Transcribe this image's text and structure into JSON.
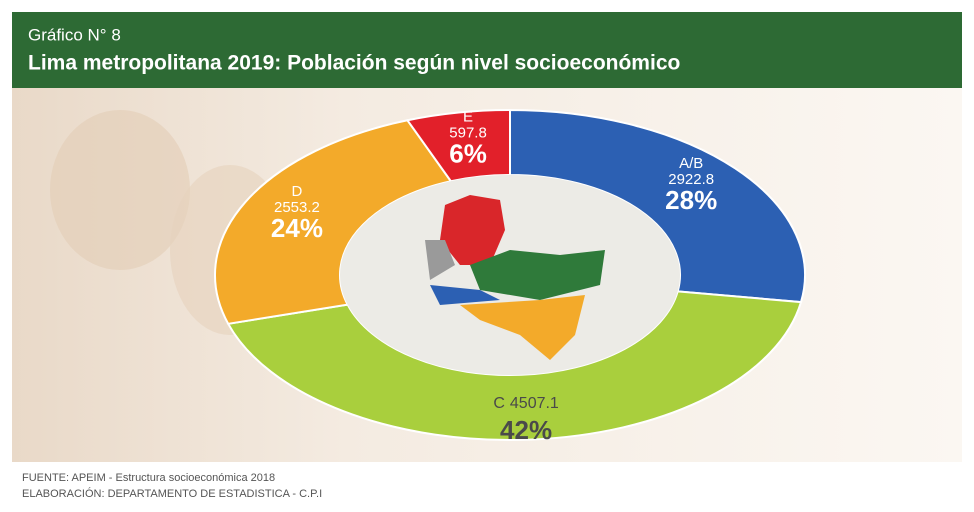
{
  "chart_data": {
    "type": "donut",
    "subtitle": "Gráfico N° 8",
    "title": "Lima metropolitana 2019: Población según nivel socioeconómico",
    "categories": [
      "A/B",
      "C",
      "D",
      "E"
    ],
    "values": [
      2922.8,
      4507.1,
      2553.2,
      597.8
    ],
    "percentages": [
      {
        "value": 28,
        "label": "28%"
      },
      {
        "value": 42,
        "label": "42%"
      },
      {
        "value": 24,
        "label": "24%"
      },
      {
        "value": 6,
        "label": "6%"
      }
    ],
    "colors": [
      "#2c60b3",
      "#a9cf3d",
      "#f3aa2a",
      "#e2202a"
    ],
    "source": "FUENTE:  APEIM - Estructura socioeconómica 2018",
    "credit": "ELABORACIÓN: DEPARTAMENTO DE ESTADISTICA - C.P.I"
  }
}
